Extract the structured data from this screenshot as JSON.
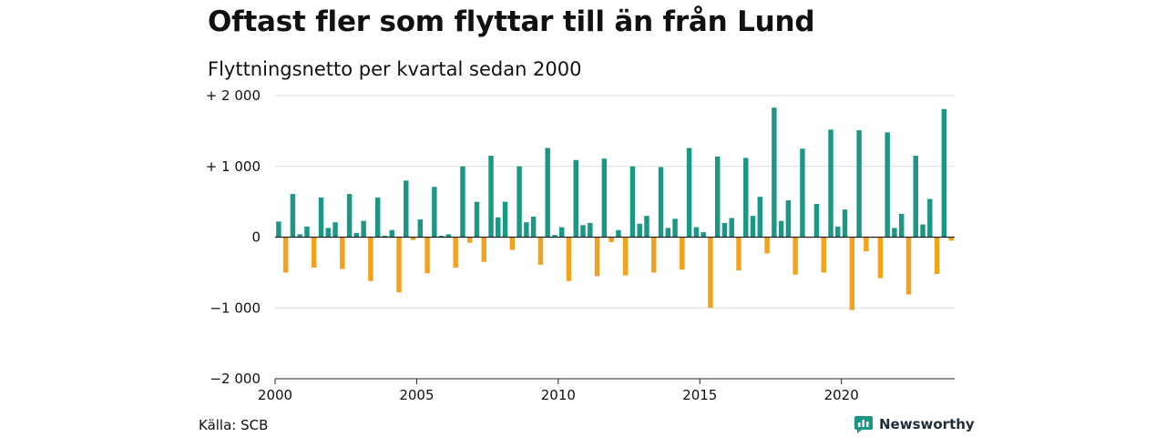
{
  "header": {
    "title": "Oftast fler som flyttar till än från Lund",
    "subtitle": "Flyttningsnetto per kvartal sedan 2000"
  },
  "footer": {
    "source": "Källa: SCB",
    "brand": "Newsworthy",
    "brand_icon": "newsworthy-logo-icon"
  },
  "colors": {
    "positive": "#1a9885",
    "negative": "#f4a11c",
    "grid": "#dddddd",
    "axis": "#222222",
    "brand": "#1a9885"
  },
  "chart_data": {
    "type": "bar",
    "title": "Oftast fler som flyttar till än från Lund",
    "subtitle": "Flyttningsnetto per kvartal sedan 2000",
    "x_unit": "quarter",
    "x_start": "2000 Q1",
    "xlim": [
      2000,
      2024
    ],
    "ylim": [
      -2000,
      2000
    ],
    "grid": true,
    "y_ticks": [
      {
        "value": 2000,
        "label": "+ 2 000"
      },
      {
        "value": 1000,
        "label": "+ 1 000"
      },
      {
        "value": 0,
        "label": "0"
      },
      {
        "value": -1000,
        "label": "−1 000"
      },
      {
        "value": -2000,
        "label": "−2 000"
      }
    ],
    "x_ticks": [
      {
        "value": 2000,
        "label": "2000"
      },
      {
        "value": 2005,
        "label": "2005"
      },
      {
        "value": 2010,
        "label": "2010"
      },
      {
        "value": 2015,
        "label": "2015"
      },
      {
        "value": 2020,
        "label": "2020"
      }
    ],
    "values": [
      220,
      -500,
      610,
      40,
      150,
      -430,
      560,
      130,
      210,
      -450,
      610,
      60,
      230,
      -620,
      560,
      20,
      100,
      -780,
      800,
      -40,
      250,
      -510,
      710,
      20,
      40,
      -430,
      1000,
      -80,
      500,
      -350,
      1150,
      280,
      500,
      -180,
      1000,
      210,
      290,
      -390,
      1260,
      30,
      140,
      -620,
      1090,
      170,
      200,
      -550,
      1110,
      -70,
      100,
      -540,
      1000,
      190,
      300,
      -500,
      990,
      130,
      260,
      -460,
      1260,
      140,
      70,
      -1000,
      1140,
      200,
      270,
      -470,
      1120,
      300,
      570,
      -230,
      1830,
      230,
      520,
      -530,
      1250,
      0,
      470,
      -500,
      1520,
      150,
      390,
      -1030,
      1510,
      -200,
      -10,
      -580,
      1480,
      130,
      330,
      -810,
      1150,
      180,
      540,
      -520,
      1810,
      -50
    ]
  }
}
